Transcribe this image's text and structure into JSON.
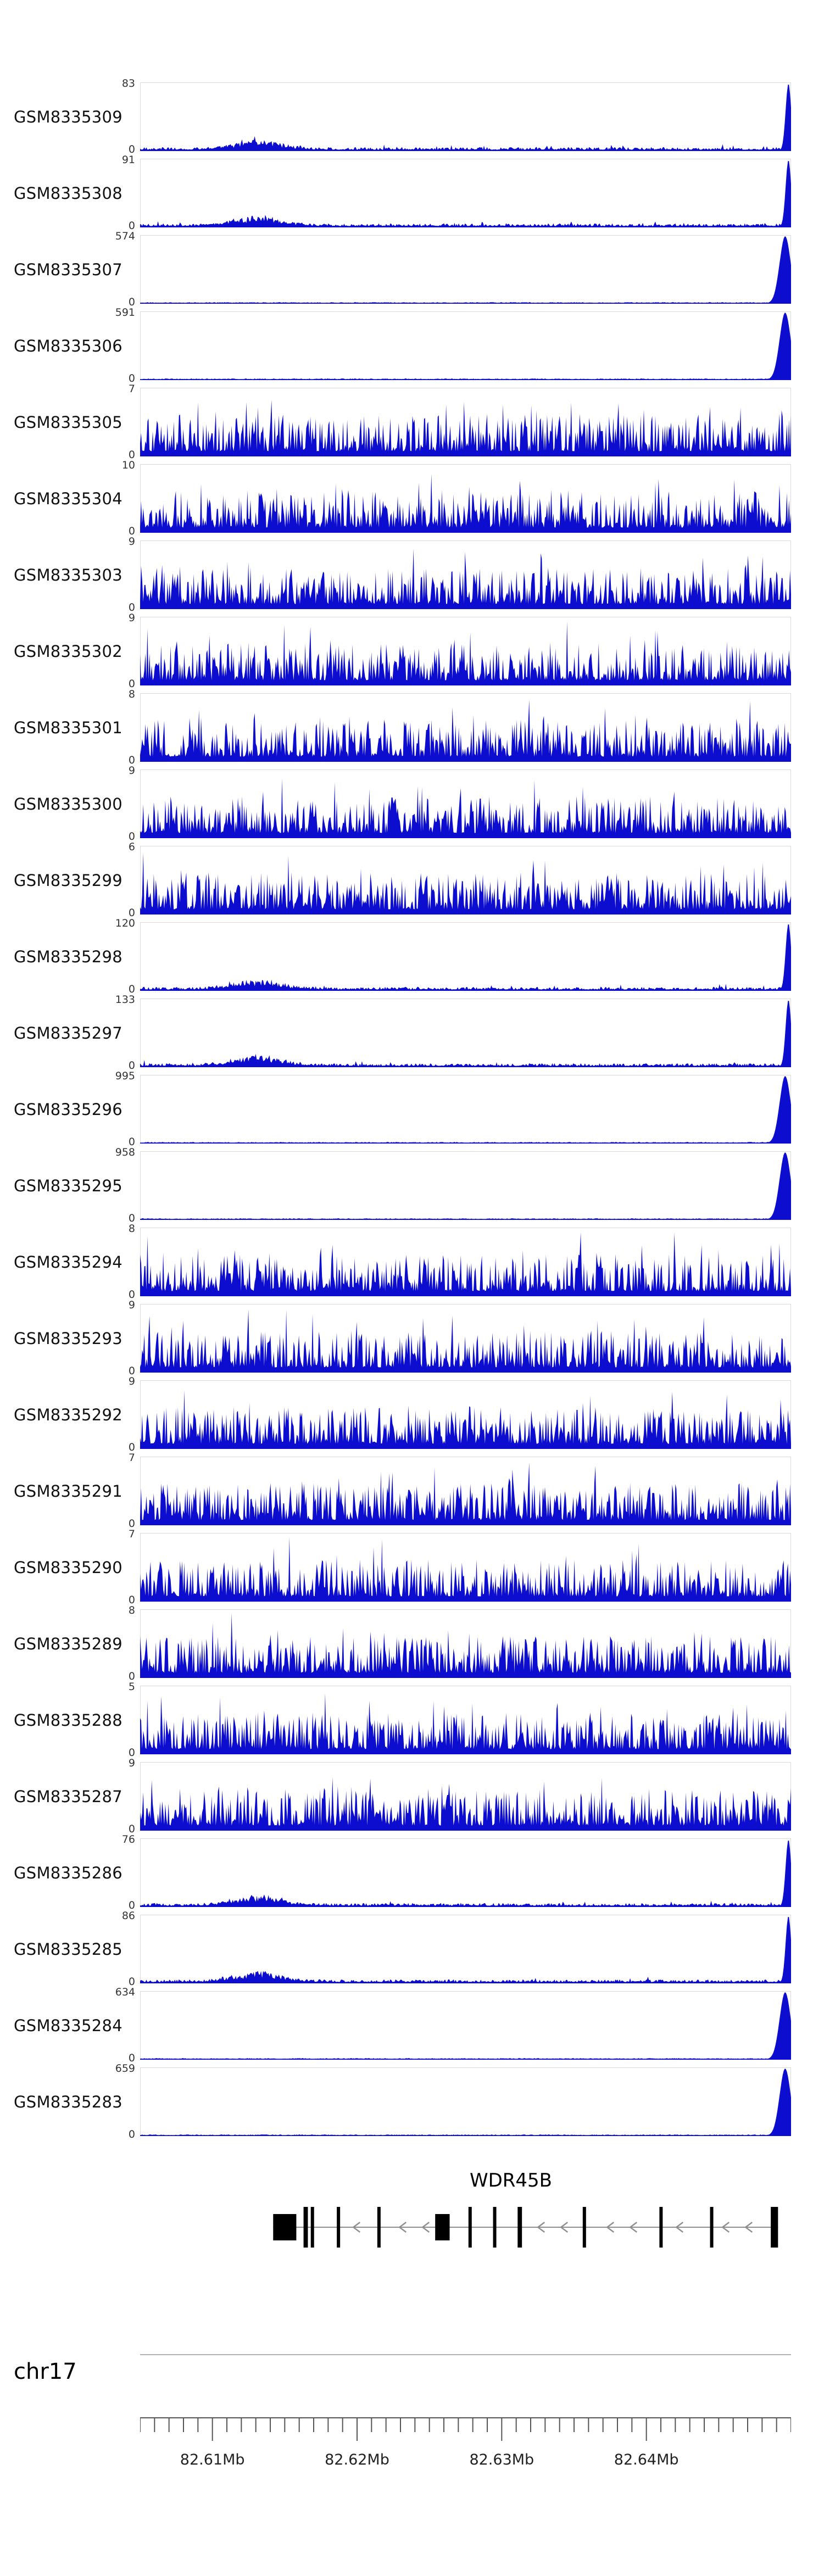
{
  "chart_data": {
    "type": "area",
    "subtype": "genome-browser-coverage-tracks",
    "title": "",
    "region": {
      "chrom": "chr17",
      "start_mb": 82.605,
      "end_mb": 82.65
    },
    "signal_color": "#0d0dd0",
    "axis": {
      "ymin_label": "0"
    },
    "legend": "none",
    "tracks": [
      {
        "name": "GSM8335309",
        "ymax": 83,
        "pattern": "low_right_spike"
      },
      {
        "name": "GSM8335308",
        "ymax": 91,
        "pattern": "low_right_spike"
      },
      {
        "name": "GSM8335307",
        "ymax": 574,
        "pattern": "flat_right_peak"
      },
      {
        "name": "GSM8335306",
        "ymax": 591,
        "pattern": "flat_right_peak"
      },
      {
        "name": "GSM8335305",
        "ymax": 7,
        "pattern": "dense"
      },
      {
        "name": "GSM8335304",
        "ymax": 10,
        "pattern": "dense"
      },
      {
        "name": "GSM8335303",
        "ymax": 9,
        "pattern": "dense"
      },
      {
        "name": "GSM8335302",
        "ymax": 9,
        "pattern": "dense"
      },
      {
        "name": "GSM8335301",
        "ymax": 8,
        "pattern": "dense"
      },
      {
        "name": "GSM8335300",
        "ymax": 9,
        "pattern": "dense"
      },
      {
        "name": "GSM8335299",
        "ymax": 6,
        "pattern": "dense"
      },
      {
        "name": "GSM8335298",
        "ymax": 120,
        "pattern": "low_right_spike"
      },
      {
        "name": "GSM8335297",
        "ymax": 133,
        "pattern": "low_right_spike"
      },
      {
        "name": "GSM8335296",
        "ymax": 995,
        "pattern": "flat_right_peak"
      },
      {
        "name": "GSM8335295",
        "ymax": 958,
        "pattern": "flat_right_peak"
      },
      {
        "name": "GSM8335294",
        "ymax": 8,
        "pattern": "dense"
      },
      {
        "name": "GSM8335293",
        "ymax": 9,
        "pattern": "dense"
      },
      {
        "name": "GSM8335292",
        "ymax": 9,
        "pattern": "dense"
      },
      {
        "name": "GSM8335291",
        "ymax": 7,
        "pattern": "dense"
      },
      {
        "name": "GSM8335290",
        "ymax": 7,
        "pattern": "dense"
      },
      {
        "name": "GSM8335289",
        "ymax": 8,
        "pattern": "dense"
      },
      {
        "name": "GSM8335288",
        "ymax": 5,
        "pattern": "dense"
      },
      {
        "name": "GSM8335287",
        "ymax": 9,
        "pattern": "dense"
      },
      {
        "name": "GSM8335286",
        "ymax": 76,
        "pattern": "low_right_spike"
      },
      {
        "name": "GSM8335285",
        "ymax": 86,
        "pattern": "low_right_spike"
      },
      {
        "name": "GSM8335284",
        "ymax": 634,
        "pattern": "flat_right_peak"
      },
      {
        "name": "GSM8335283",
        "ymax": 659,
        "pattern": "flat_right_peak"
      }
    ],
    "gene_track": {
      "gene": "WDR45B",
      "strand": "-",
      "color": "#000000",
      "line_color": "#8f8f8f",
      "exons_mb": [
        [
          82.6142,
          82.6158,
          "box"
        ],
        [
          82.6163,
          82.6166,
          "tall"
        ],
        [
          82.6168,
          82.617,
          "tall"
        ],
        [
          82.6186,
          82.6188,
          "tall"
        ],
        [
          82.6214,
          82.6216,
          "tall"
        ],
        [
          82.6254,
          82.6264,
          "box"
        ],
        [
          82.6277,
          82.6279,
          "tall"
        ],
        [
          82.6294,
          82.6296,
          "tall"
        ],
        [
          82.6311,
          82.6314,
          "tall"
        ],
        [
          82.6356,
          82.6358,
          "tall"
        ],
        [
          82.6409,
          82.6411,
          "tall"
        ],
        [
          82.6444,
          82.6446,
          "tall"
        ],
        [
          82.6486,
          82.6491,
          "tall"
        ]
      ]
    },
    "ruler": {
      "units": "Mb",
      "minor_step_mb": 0.001,
      "major_ticks": [
        {
          "mb": 82.61,
          "label": "82.61Mb"
        },
        {
          "mb": 82.62,
          "label": "82.62Mb"
        },
        {
          "mb": 82.63,
          "label": "82.63Mb"
        },
        {
          "mb": 82.64,
          "label": "82.64Mb"
        }
      ]
    }
  }
}
